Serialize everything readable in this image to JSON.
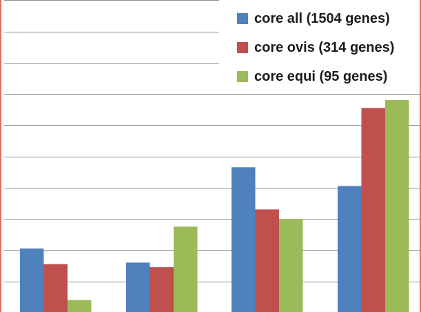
{
  "chart_data": {
    "type": "bar",
    "categories": [
      "",
      "",
      "",
      ""
    ],
    "series": [
      {
        "name": "core all (1504 genes)",
        "color": "#4f81bd",
        "values": [
          10.5,
          6.0,
          36.5,
          30.5
        ]
      },
      {
        "name": "core ovis (314 genes)",
        "color": "#c0504d",
        "values": [
          5.5,
          4.5,
          23.0,
          55.5
        ]
      },
      {
        "name": "core equi (95 genes)",
        "color": "#9bbb59",
        "values": [
          -6.0,
          17.5,
          20.0,
          58.0
        ]
      }
    ],
    "ylim": [
      -10,
      90
    ],
    "grid": true,
    "legend_position": "top-right",
    "title": "",
    "xlabel": "",
    "ylabel": ""
  }
}
